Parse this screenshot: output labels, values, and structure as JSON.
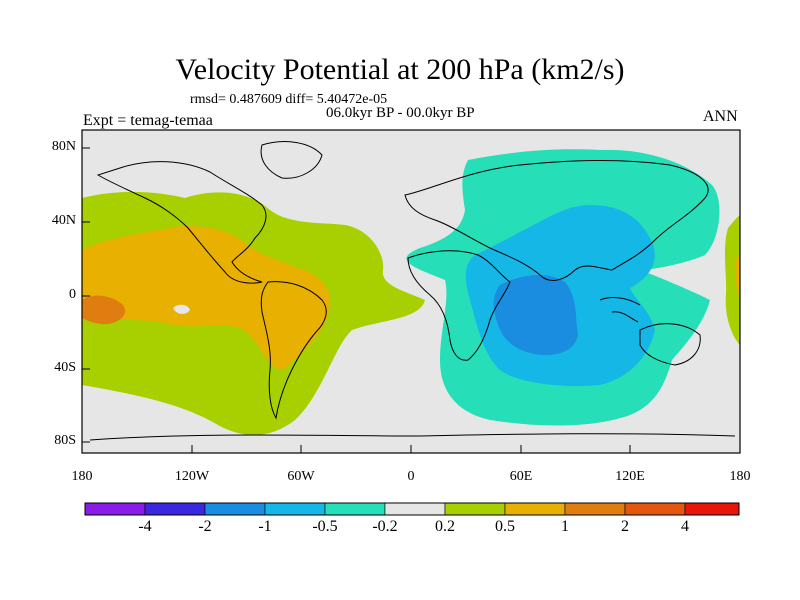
{
  "title": "Velocity Potential at 200 hPa (km2/s)",
  "stats": "rmsd= 0.487609 diff= 5.40472e-05",
  "period": "06.0kyr BP - 00.0kyr BP",
  "experiment": "Expt = temag-temaa",
  "season": "ANN",
  "map": {
    "lat_ticks": [
      "80N",
      "40N",
      "0",
      "40S",
      "80S"
    ],
    "lon_ticks": [
      "180",
      "120W",
      "60W",
      "0",
      "60E",
      "120E",
      "180"
    ],
    "background_color": "#e6e6e6",
    "regions": [
      {
        "name": "positive-anomaly-west",
        "level": "0.2 to 0.5",
        "color": "#a8cf00"
      },
      {
        "name": "positive-anomaly-core",
        "level": "0.5 to 1",
        "color": "#e8b000"
      },
      {
        "name": "positive-anomaly-peak",
        "level": "1 to 2",
        "color": "#e07d10"
      },
      {
        "name": "negative-anomaly-east",
        "level": "-0.5 to -0.2",
        "color": "#26dfb8"
      },
      {
        "name": "negative-anomaly-core",
        "level": "-1 to -0.5",
        "color": "#15b7e6"
      },
      {
        "name": "negative-anomaly-peak",
        "level": "-2 to -1",
        "color": "#1a8de0"
      }
    ]
  },
  "colorbar": {
    "labels": [
      "-4",
      "-2",
      "-1",
      "-0.5",
      "-0.2",
      "0.2",
      "0.5",
      "1",
      "2",
      "4"
    ],
    "colors": [
      "#8a1ce8",
      "#3a28e0",
      "#1a8de0",
      "#15b7e6",
      "#26dfb8",
      "#e6e6e6",
      "#a8cf00",
      "#e8b000",
      "#e07d10",
      "#e3570e",
      "#e8150a"
    ]
  }
}
